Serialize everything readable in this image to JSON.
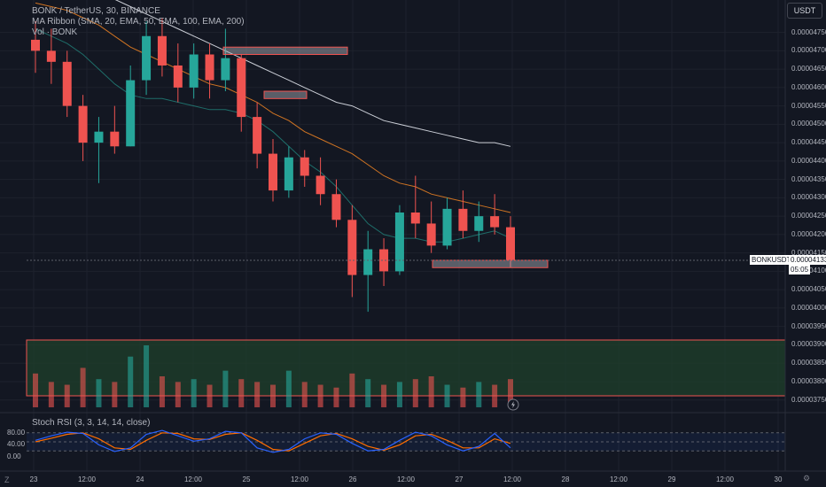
{
  "legend": {
    "title": "BONK / TetherUS, 30, BINANCE",
    "ma_ribbon": "MA Ribbon (SMA, 20, EMA, 50, EMA, 100, EMA, 200)",
    "volume": "Vol · BONK"
  },
  "currency_button": "USDT",
  "price_scale": [
    "0.00004750",
    "0.00004700",
    "0.00004650",
    "0.00004600",
    "0.00004550",
    "0.00004500",
    "0.00004450",
    "0.00004400",
    "0.00004350",
    "0.00004300",
    "0.00004250",
    "0.00004200",
    "0.00004150",
    "0.00004100",
    "0.00004050",
    "0.00004000",
    "0.00003950",
    "0.00003900",
    "0.00003850",
    "0.00003800",
    "0.00003750"
  ],
  "last_price": {
    "symbol": "BONKUSDT",
    "price": "0.00004133",
    "countdown": "05:05"
  },
  "stoch_rsi": {
    "label": "Stoch RSI (3, 3, 14, 14, close)",
    "levels": [
      "80.00",
      "40.00",
      "0.00"
    ]
  },
  "time_axis": [
    "23",
    "12:00",
    "24",
    "12:00",
    "25",
    "12:00",
    "26",
    "12:00",
    "27",
    "12:00",
    "28",
    "12:00",
    "29",
    "12:00",
    "30"
  ],
  "toolbar": {
    "scale_z": "Z",
    "settings": "⚙"
  },
  "colors": {
    "up": "#26a69a",
    "down": "#ef5350",
    "ema50": "#e67e22",
    "ema200": "#e0e3eb",
    "rsi_k": "#2962ff",
    "rsi_d": "#ff6d00",
    "zone_fill": "#1e3d2b",
    "zone_border": "#ef5350"
  },
  "chart_data": {
    "type": "candlestick",
    "symbol": "BONK / TetherUS",
    "interval": "30",
    "ylim": [
      3.73e-05,
      4.79e-05
    ],
    "series": [
      {
        "name": "BONK",
        "values": [
          [
            4.73e-05,
            4.78e-05,
            4.64e-05,
            4.7e-05
          ],
          [
            4.7e-05,
            4.76e-05,
            4.61e-05,
            4.67e-05
          ],
          [
            4.67e-05,
            4.7e-05,
            4.52e-05,
            4.55e-05
          ],
          [
            4.55e-05,
            4.58e-05,
            4.4e-05,
            4.45e-05
          ],
          [
            4.45e-05,
            4.52e-05,
            4.34e-05,
            4.48e-05
          ],
          [
            4.48e-05,
            4.55e-05,
            4.42e-05,
            4.44e-05
          ],
          [
            4.44e-05,
            4.66e-05,
            4.44e-05,
            4.62e-05
          ],
          [
            4.62e-05,
            4.78e-05,
            4.58e-05,
            4.74e-05
          ],
          [
            4.74e-05,
            4.79e-05,
            4.63e-05,
            4.66e-05
          ],
          [
            4.66e-05,
            4.72e-05,
            4.56e-05,
            4.6e-05
          ],
          [
            4.6e-05,
            4.72e-05,
            4.57e-05,
            4.69e-05
          ],
          [
            4.69e-05,
            4.72e-05,
            4.57e-05,
            4.62e-05
          ],
          [
            4.62e-05,
            4.76e-05,
            4.59e-05,
            4.68e-05
          ],
          [
            4.68e-05,
            4.69e-05,
            4.48e-05,
            4.52e-05
          ],
          [
            4.52e-05,
            4.56e-05,
            4.38e-05,
            4.42e-05
          ],
          [
            4.42e-05,
            4.46e-05,
            4.29e-05,
            4.32e-05
          ],
          [
            4.32e-05,
            4.44e-05,
            4.3e-05,
            4.41e-05
          ],
          [
            4.41e-05,
            4.43e-05,
            4.33e-05,
            4.36e-05
          ],
          [
            4.36e-05,
            4.41e-05,
            4.28e-05,
            4.31e-05
          ],
          [
            4.31e-05,
            4.35e-05,
            4.22e-05,
            4.24e-05
          ],
          [
            4.24e-05,
            4.28e-05,
            4.03e-05,
            4.09e-05
          ],
          [
            4.09e-05,
            4.21e-05,
            3.99e-05,
            4.16e-05
          ],
          [
            4.16e-05,
            4.19e-05,
            4.06e-05,
            4.1e-05
          ],
          [
            4.1e-05,
            4.28e-05,
            4.09e-05,
            4.26e-05
          ],
          [
            4.26e-05,
            4.36e-05,
            4.19e-05,
            4.23e-05
          ],
          [
            4.23e-05,
            4.29e-05,
            4.15e-05,
            4.17e-05
          ],
          [
            4.17e-05,
            4.3e-05,
            4.16e-05,
            4.27e-05
          ],
          [
            4.27e-05,
            4.32e-05,
            4.19e-05,
            4.21e-05
          ],
          [
            4.21e-05,
            4.29e-05,
            4.18e-05,
            4.25e-05
          ],
          [
            4.25e-05,
            4.31e-05,
            4.2e-05,
            4.22e-05
          ],
          [
            4.22e-05,
            4.25e-05,
            4.11e-05,
            4.13e-05
          ]
        ]
      },
      {
        "name": "MA 20",
        "values": [
          4.76e-05,
          4.74e-05,
          4.72e-05,
          4.69e-05,
          4.65e-05,
          4.61e-05,
          4.58e-05,
          4.57e-05,
          4.57e-05,
          4.56e-05,
          4.55e-05,
          4.54e-05,
          4.54e-05,
          4.53e-05,
          4.51e-05,
          4.48e-05,
          4.44e-05,
          4.4e-05,
          4.37e-05,
          4.33e-05,
          4.28e-05,
          4.23e-05,
          4.2e-05,
          4.19e-05,
          4.19e-05,
          4.18e-05,
          4.18e-05,
          4.19e-05,
          4.2e-05,
          4.21e-05,
          4.19e-05
        ]
      },
      {
        "name": "EMA 50",
        "values": [
          4.83e-05,
          4.82e-05,
          4.81e-05,
          4.79e-05,
          4.77e-05,
          4.74e-05,
          4.71e-05,
          4.69e-05,
          4.67e-05,
          4.65e-05,
          4.63e-05,
          4.61e-05,
          4.6e-05,
          4.58e-05,
          4.56e-05,
          4.53e-05,
          4.51e-05,
          4.48e-05,
          4.46e-05,
          4.44e-05,
          4.42e-05,
          4.39e-05,
          4.36e-05,
          4.34e-05,
          4.33e-05,
          4.31e-05,
          4.3e-05,
          4.29e-05,
          4.28e-05,
          4.27e-05,
          4.26e-05
        ]
      },
      {
        "name": "EMA 200",
        "values": [
          null,
          null,
          null,
          null,
          null,
          4.84e-05,
          4.82e-05,
          4.8e-05,
          4.78e-05,
          4.76e-05,
          4.74e-05,
          4.72e-05,
          4.7e-05,
          4.68e-05,
          4.66e-05,
          4.64e-05,
          4.62e-05,
          4.6e-05,
          4.58e-05,
          4.56e-05,
          4.55e-05,
          4.53e-05,
          4.51e-05,
          4.5e-05,
          4.49e-05,
          4.48e-05,
          4.47e-05,
          4.46e-05,
          4.45e-05,
          4.45e-05,
          4.44e-05
        ]
      }
    ],
    "volume": [
      12,
      9,
      8,
      14,
      10,
      9,
      18,
      22,
      11,
      9,
      10,
      8,
      13,
      10,
      9,
      8,
      13,
      9,
      8,
      7,
      12,
      10,
      8,
      9,
      10,
      11,
      8,
      7,
      9,
      8,
      10
    ],
    "zones": [
      {
        "top": 4.71e-05,
        "bottom": 4.69e-05
      },
      {
        "top": 4.59e-05,
        "bottom": 4.57e-05
      },
      {
        "top": 4.13e-05,
        "bottom": 4.11e-05
      }
    ],
    "stoch_rsi": {
      "k": [
        55,
        70,
        82,
        78,
        40,
        18,
        30,
        75,
        88,
        70,
        52,
        60,
        85,
        80,
        30,
        15,
        25,
        60,
        80,
        75,
        45,
        20,
        25,
        55,
        82,
        70,
        40,
        20,
        35,
        78,
        30
      ],
      "d": [
        50,
        62,
        75,
        80,
        60,
        30,
        25,
        55,
        80,
        78,
        60,
        58,
        75,
        80,
        55,
        25,
        20,
        45,
        70,
        78,
        60,
        35,
        22,
        40,
        70,
        75,
        55,
        30,
        30,
        60,
        45
      ],
      "ylim": [
        0,
        100
      ]
    }
  }
}
